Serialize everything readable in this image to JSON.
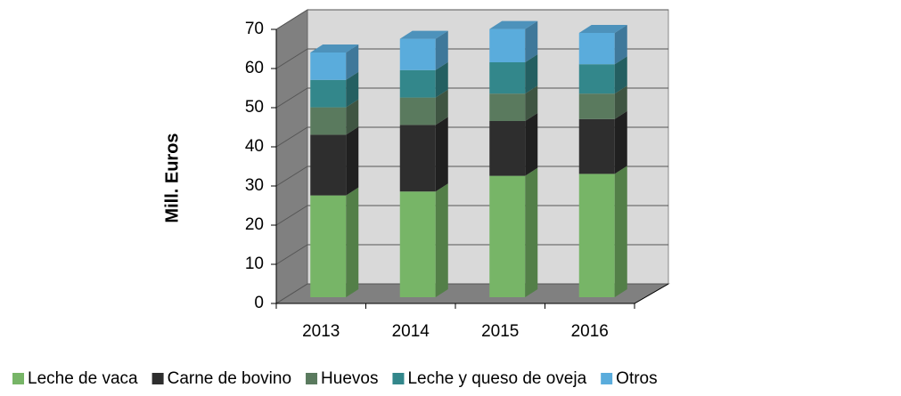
{
  "chart_data": {
    "type": "bar",
    "stacked": true,
    "ylabel": "Mill.  Euros",
    "categories": [
      "2013",
      "2014",
      "2015",
      "2016"
    ],
    "series": [
      {
        "name": "Leche de vaca",
        "color": "#77b567",
        "values": [
          26,
          27,
          31,
          31.5
        ]
      },
      {
        "name": "Carne de bovino",
        "color": "#2e2e2e",
        "values": [
          15.5,
          17,
          14,
          14
        ]
      },
      {
        "name": "Huevos",
        "color": "#5a7a5e",
        "values": [
          7,
          7,
          7,
          6.5
        ]
      },
      {
        "name": "Leche y queso de oveja",
        "color": "#33878b",
        "values": [
          7,
          7,
          8,
          7.5
        ]
      },
      {
        "name": "Otros",
        "color": "#5aacdc",
        "values": [
          7,
          8,
          8.5,
          8
        ]
      }
    ],
    "ylim": [
      0,
      70
    ],
    "yticks": [
      0,
      10,
      20,
      30,
      40,
      50,
      60,
      70
    ],
    "grid": true,
    "legend": "bottom"
  }
}
